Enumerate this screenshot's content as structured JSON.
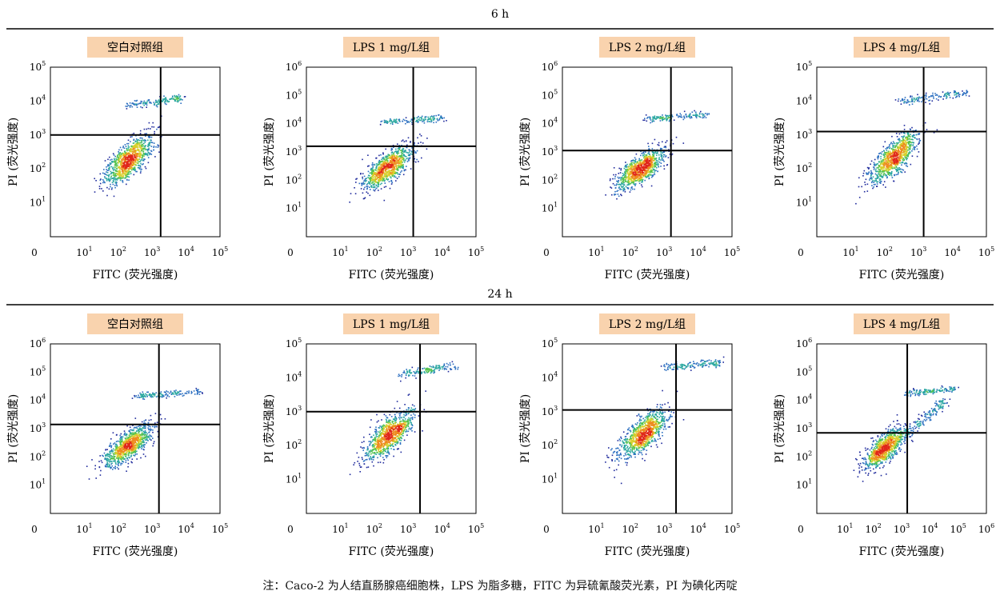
{
  "figure": {
    "rows": [
      {
        "time_label": "6 h"
      },
      {
        "time_label": "24 h"
      }
    ],
    "note": "注：Caco-2 为人结直肠腺癌细胞株，LPS 为脂多糖，FITC 为异硫氰酸荧光素，PI 为碘化丙啶"
  },
  "colors": {
    "badge_fill": "#f9d3ae",
    "density_scale": [
      "#1f2a9c",
      "#2c6fc0",
      "#2aa7a0",
      "#55c24c",
      "#d8d02c",
      "#ee8a1e",
      "#e0261a"
    ]
  },
  "chart_data": [
    {
      "type": "scatter",
      "row": "6 h",
      "title": "空白对照组",
      "xlabel": "FITC (荧光强度)",
      "ylabel": "PI (荧光强度)",
      "xticks": [
        "0",
        "10^1",
        "10^2",
        "10^3",
        "10^4",
        "10^5"
      ],
      "yticks": [
        "10^1",
        "10^2",
        "10^3",
        "10^4",
        "10^5"
      ],
      "xlim": [
        0,
        5
      ],
      "ylim": [
        0,
        5
      ],
      "gate": {
        "x": 3.25,
        "y": 3.0
      },
      "populations": [
        {
          "name": "main",
          "x": 2.3,
          "y": 2.25,
          "sx": 0.36,
          "sy": 0.36,
          "rho": 0.72,
          "n": 950
        },
        {
          "name": "upper",
          "x0": 2.3,
          "x1": 3.9,
          "y0": 3.85,
          "y1": 4.1,
          "spread": 0.06,
          "n": 150
        }
      ]
    },
    {
      "type": "scatter",
      "row": "6 h",
      "title": "LPS 1 mg/L组",
      "xlabel": "FITC (荧光强度)",
      "ylabel": "PI (荧光强度)",
      "xticks": [
        "0",
        "10^1",
        "10^2",
        "10^3",
        "10^4",
        "10^5"
      ],
      "yticks": [
        "10^1",
        "10^2",
        "10^3",
        "10^4",
        "10^5",
        "10^6"
      ],
      "xlim": [
        0,
        5
      ],
      "ylim": [
        0,
        6
      ],
      "gate": {
        "x": 3.15,
        "y": 3.2
      },
      "populations": [
        {
          "name": "main",
          "x": 2.4,
          "y": 2.45,
          "sx": 0.36,
          "sy": 0.38,
          "rho": 0.72,
          "n": 950
        },
        {
          "name": "upper",
          "x0": 2.2,
          "x1": 4.1,
          "y0": 4.05,
          "y1": 4.2,
          "spread": 0.06,
          "n": 150
        }
      ]
    },
    {
      "type": "scatter",
      "row": "6 h",
      "title": "LPS 2 mg/L组",
      "xlabel": "FITC (荧光强度)",
      "ylabel": "PI (荧光强度)",
      "xticks": [
        "0",
        "10^1",
        "10^2",
        "10^3",
        "10^4",
        "10^5"
      ],
      "yticks": [
        "10^1",
        "10^2",
        "10^3",
        "10^4",
        "10^5",
        "10^6"
      ],
      "xlim": [
        0,
        5
      ],
      "ylim": [
        0,
        6
      ],
      "gate": {
        "x": 3.2,
        "y": 3.05
      },
      "populations": [
        {
          "name": "main",
          "x": 2.3,
          "y": 2.4,
          "sx": 0.36,
          "sy": 0.36,
          "rho": 0.72,
          "n": 950
        },
        {
          "name": "upper",
          "x0": 2.4,
          "x1": 4.3,
          "y0": 4.15,
          "y1": 4.35,
          "spread": 0.06,
          "n": 150
        }
      ]
    },
    {
      "type": "scatter",
      "row": "6 h",
      "title": "LPS 4 mg/L组",
      "xlabel": "FITC (荧光强度)",
      "ylabel": "PI (荧光强度)",
      "xticks": [
        "0",
        "10^1",
        "10^2",
        "10^3",
        "10^4",
        "10^5"
      ],
      "yticks": [
        "10^1",
        "10^2",
        "10^3",
        "10^4",
        "10^5"
      ],
      "xlim": [
        0,
        5
      ],
      "ylim": [
        0,
        5
      ],
      "gate": {
        "x": 3.15,
        "y": 3.1
      },
      "populations": [
        {
          "name": "main",
          "x": 2.3,
          "y": 2.35,
          "sx": 0.36,
          "sy": 0.38,
          "rho": 0.74,
          "n": 950
        },
        {
          "name": "upper",
          "x0": 2.5,
          "x1": 4.5,
          "y0": 4.0,
          "y1": 4.25,
          "spread": 0.06,
          "n": 150
        }
      ]
    },
    {
      "type": "scatter",
      "row": "24 h",
      "title": "空白对照组",
      "xlabel": "FITC (荧光强度)",
      "ylabel": "PI (荧光强度)",
      "xticks": [
        "0",
        "10^1",
        "10^2",
        "10^3",
        "10^4",
        "10^5"
      ],
      "yticks": [
        "10^1",
        "10^2",
        "10^3",
        "10^4",
        "10^5",
        "10^6"
      ],
      "xlim": [
        0,
        5
      ],
      "ylim": [
        0,
        6
      ],
      "gate": {
        "x": 3.2,
        "y": 3.15
      },
      "populations": [
        {
          "name": "main",
          "x": 2.3,
          "y": 2.4,
          "sx": 0.36,
          "sy": 0.36,
          "rho": 0.72,
          "n": 950
        },
        {
          "name": "upper",
          "x0": 2.5,
          "x1": 4.4,
          "y0": 4.15,
          "y1": 4.3,
          "spread": 0.06,
          "n": 150
        }
      ]
    },
    {
      "type": "scatter",
      "row": "24 h",
      "title": "LPS 1 mg/L组",
      "xlabel": "FITC (荧光强度)",
      "ylabel": "PI (荧光强度)",
      "xticks": [
        "0",
        "10^1",
        "10^2",
        "10^3",
        "10^4",
        "10^5"
      ],
      "yticks": [
        "10^1",
        "10^2",
        "10^3",
        "10^4",
        "10^5"
      ],
      "xlim": [
        0,
        5
      ],
      "ylim": [
        0,
        5
      ],
      "gate": {
        "x": 3.35,
        "y": 3.0
      },
      "populations": [
        {
          "name": "main",
          "x": 2.45,
          "y": 2.3,
          "sx": 0.36,
          "sy": 0.36,
          "rho": 0.72,
          "n": 950
        },
        {
          "name": "upper",
          "x0": 2.8,
          "x1": 4.4,
          "y0": 4.1,
          "y1": 4.35,
          "spread": 0.06,
          "n": 150
        }
      ]
    },
    {
      "type": "scatter",
      "row": "24 h",
      "title": "LPS 2 mg/L组",
      "xlabel": "FITC (荧光强度)",
      "ylabel": "PI (荧光强度)",
      "xticks": [
        "0",
        "10^1",
        "10^2",
        "10^3",
        "10^4",
        "10^5"
      ],
      "yticks": [
        "10^1",
        "10^2",
        "10^3",
        "10^4",
        "10^5"
      ],
      "xlim": [
        0,
        5
      ],
      "ylim": [
        0,
        5
      ],
      "gate": {
        "x": 3.35,
        "y": 3.05
      },
      "populations": [
        {
          "name": "main",
          "x": 2.4,
          "y": 2.35,
          "sx": 0.36,
          "sy": 0.36,
          "rho": 0.72,
          "n": 950
        },
        {
          "name": "upper",
          "x0": 3.0,
          "x1": 4.7,
          "y0": 4.3,
          "y1": 4.45,
          "spread": 0.06,
          "n": 150
        }
      ]
    },
    {
      "type": "scatter",
      "row": "24 h",
      "title": "LPS 4 mg/L组",
      "xlabel": "FITC (荧光强度)",
      "ylabel": "PI (荧光强度)",
      "xticks": [
        "0",
        "10^1",
        "10^2",
        "10^3",
        "10^4",
        "10^5",
        "10^6"
      ],
      "yticks": [
        "10^1",
        "10^2",
        "10^3",
        "10^4",
        "10^5",
        "10^6"
      ],
      "xlim": [
        0,
        6
      ],
      "ylim": [
        0,
        6
      ],
      "gate": {
        "x": 3.2,
        "y": 2.85
      },
      "populations": [
        {
          "name": "main",
          "x": 2.4,
          "y": 2.3,
          "sx": 0.36,
          "sy": 0.35,
          "rho": 0.7,
          "n": 900
        },
        {
          "name": "diagonal",
          "x0": 3.0,
          "x1": 4.6,
          "y0": 2.7,
          "y1": 4.0,
          "spread": 0.08,
          "n": 160
        },
        {
          "name": "upper",
          "x0": 3.1,
          "x1": 4.9,
          "y0": 4.25,
          "y1": 4.4,
          "spread": 0.06,
          "n": 140
        }
      ]
    }
  ]
}
